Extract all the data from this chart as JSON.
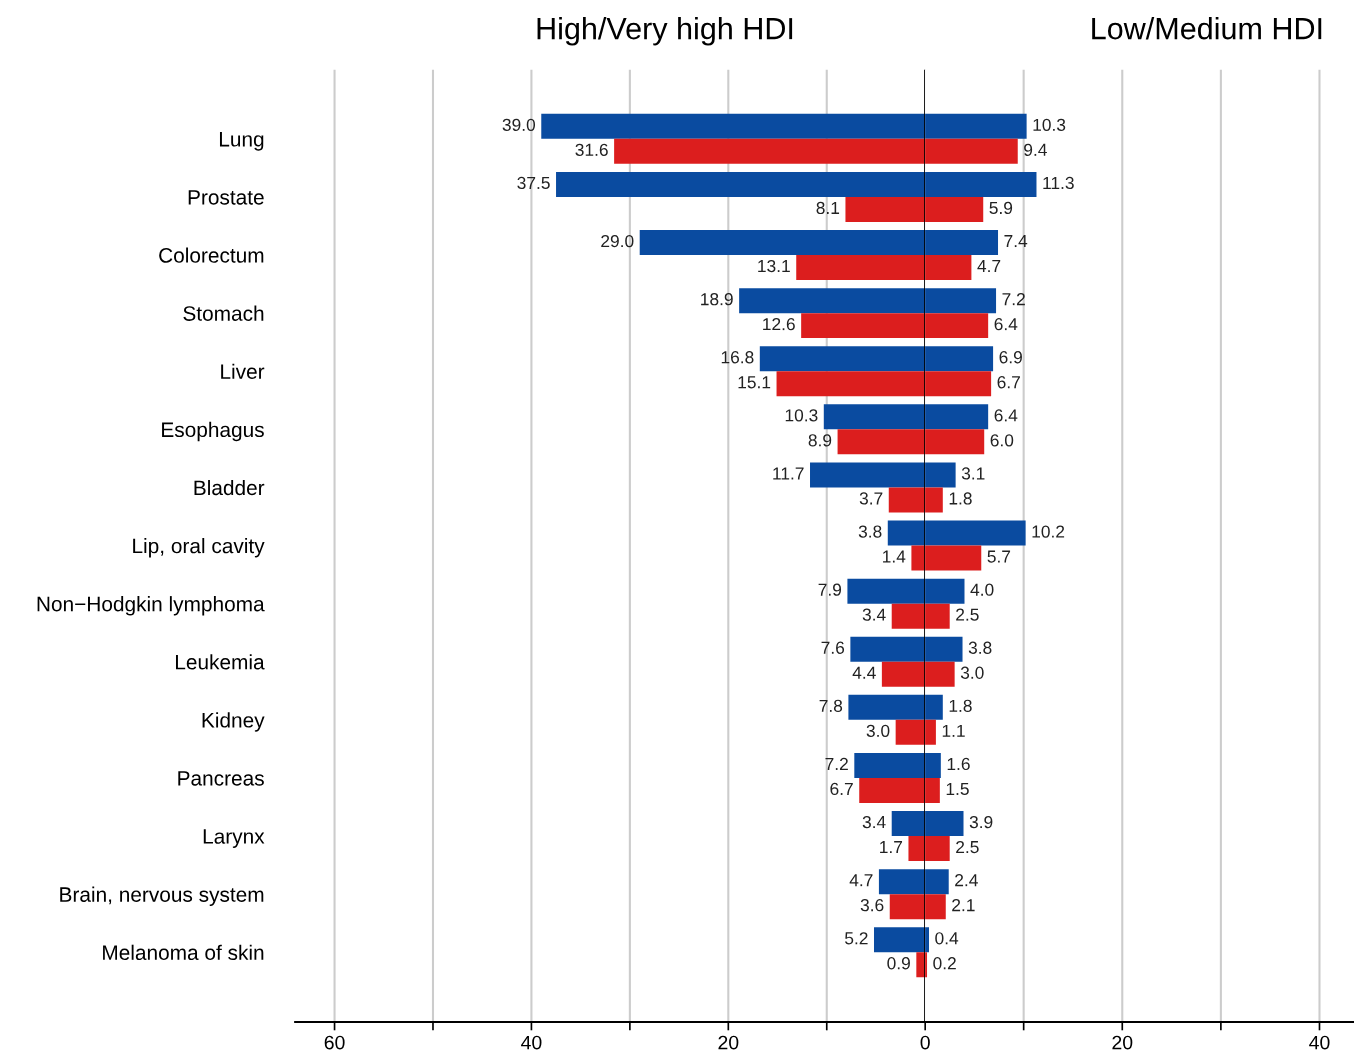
{
  "chart_data": [
    {
      "type": "bar",
      "orientation": "horizontal",
      "title": "High/Very high HDI",
      "categories": [
        "Lung",
        "Prostate",
        "Colorectum",
        "Stomach",
        "Liver",
        "Esophagus",
        "Bladder",
        "Lip, oral cavity",
        "Non−Hodgkin lymphoma",
        "Leukemia",
        "Kidney",
        "Pancreas",
        "Larynx",
        "Brain, nervous system",
        "Melanoma of skin"
      ],
      "series": [
        {
          "color": "#0a4ba0",
          "values": [
            39.0,
            37.5,
            29.0,
            18.9,
            16.8,
            10.3,
            11.7,
            3.8,
            7.9,
            7.6,
            7.8,
            7.2,
            3.4,
            4.7,
            5.2
          ],
          "value_labels": [
            "39.0",
            "37.5",
            "29.0",
            "18.9",
            "16.8",
            "10.3",
            "11.7",
            "3.8",
            "7.9",
            "7.6",
            "7.8",
            "7.2",
            "3.4",
            "4.7",
            "5.2"
          ]
        },
        {
          "color": "#dc1e1e",
          "values": [
            31.6,
            8.1,
            13.1,
            12.6,
            15.1,
            8.9,
            3.7,
            1.4,
            3.4,
            4.4,
            3.0,
            6.7,
            1.7,
            3.6,
            0.9
          ],
          "value_labels": [
            "31.6",
            "8.1",
            "13.1",
            "12.6",
            "15.1",
            "8.9",
            "3.7",
            "1.4",
            "3.4",
            "4.4",
            "3.0",
            "6.7",
            "1.7",
            "3.6",
            "0.9"
          ]
        }
      ],
      "xlim": [
        64,
        0
      ],
      "xticks": [
        60,
        {
          "value": 50,
          "label": null
        },
        40,
        {
          "value": 30,
          "label": null
        },
        20,
        {
          "value": 10,
          "label": null
        },
        0
      ],
      "grid": "x",
      "ref_lines": [
        {
          "axis": "x",
          "value": 0,
          "color": "#000000"
        }
      ],
      "legend": false
    },
    {
      "type": "bar",
      "orientation": "horizontal",
      "title": "Low/Medium HDI",
      "tick_labels": "x",
      "categories": [
        null,
        null,
        null,
        null,
        null,
        null,
        null,
        null,
        null,
        null,
        null,
        null,
        null,
        null,
        null
      ],
      "series": [
        {
          "color": "#0a4ba0",
          "values": [
            10.3,
            11.3,
            7.4,
            7.2,
            6.9,
            6.4,
            3.1,
            10.2,
            4.0,
            3.8,
            1.8,
            1.6,
            3.9,
            2.4,
            0.4
          ],
          "value_labels": [
            "10.3",
            "11.3",
            "7.4",
            "7.2",
            "6.9",
            "6.4",
            "3.1",
            "10.2",
            "4.0",
            "3.8",
            "1.8",
            "1.6",
            "3.9",
            "2.4",
            "0.4"
          ]
        },
        {
          "color": "#dc1e1e",
          "values": [
            9.4,
            5.9,
            4.7,
            6.4,
            6.7,
            6.0,
            1.8,
            5.7,
            2.5,
            3.0,
            1.1,
            1.5,
            2.5,
            2.1,
            0.2
          ],
          "value_labels": [
            "9.4",
            "5.9",
            "4.7",
            "6.4",
            "6.7",
            "6.0",
            "1.8",
            "5.7",
            "2.5",
            "3.0",
            "1.1",
            "1.5",
            "2.5",
            "2.1",
            "0.2"
          ]
        }
      ],
      "xlim": [
        0,
        43.5
      ],
      "xticks": [
        {
          "value": 10,
          "label": null
        },
        20,
        {
          "value": 30,
          "label": null
        },
        40
      ],
      "grid": "x",
      "legend": false
    }
  ]
}
